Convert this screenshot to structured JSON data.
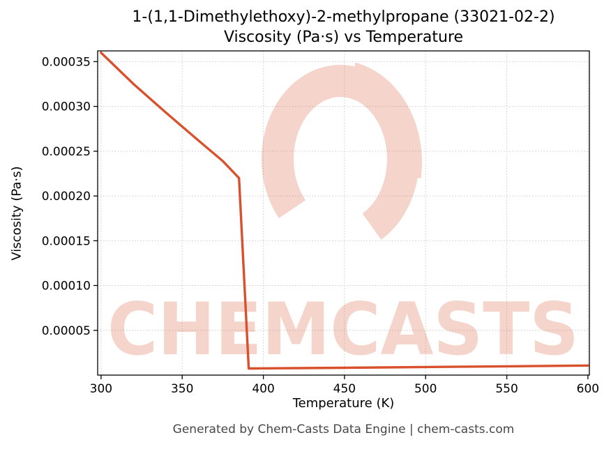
{
  "title": {
    "line1": "1-(1,1-Dimethylethoxy)-2-methylpropane (33021-02-2)",
    "line2": "Viscosity (Pa·s) vs Temperature"
  },
  "footer": {
    "text": "Generated by Chem-Casts Data Engine | chem-casts.com"
  },
  "watermark": {
    "text": "CHEMCASTS",
    "color": "#d9512c"
  },
  "chart_data": {
    "type": "line",
    "title": "1-(1,1-Dimethylethoxy)-2-methylpropane (33021-02-2) Viscosity (Pa·s) vs Temperature",
    "xlabel": "Temperature (K)",
    "ylabel": "Viscosity (Pa·s)",
    "x": [
      300,
      320,
      340,
      360,
      375,
      385,
      391,
      420,
      450,
      500,
      550,
      600
    ],
    "y": [
      0.00036,
      0.000325,
      0.000293,
      0.000262,
      0.000239,
      0.00022,
      7.4e-06,
      7.8e-06,
      8.2e-06,
      9e-06,
      9.8e-06,
      1.07e-05
    ],
    "xlim": [
      297.9,
      600.9
    ],
    "ylim": [
      0,
      0.000362
    ],
    "x_ticks": [
      300,
      350,
      400,
      450,
      500,
      550,
      600
    ],
    "y_ticks": [
      5e-05,
      0.0001,
      0.00015,
      0.0002,
      0.00025,
      0.0003,
      0.00035
    ],
    "y_tick_labels": [
      "0.00005",
      "0.00010",
      "0.00015",
      "0.00020",
      "0.00025",
      "0.00030",
      "0.00035"
    ],
    "line_color": "#d9512c",
    "grid": true,
    "legend": null
  }
}
